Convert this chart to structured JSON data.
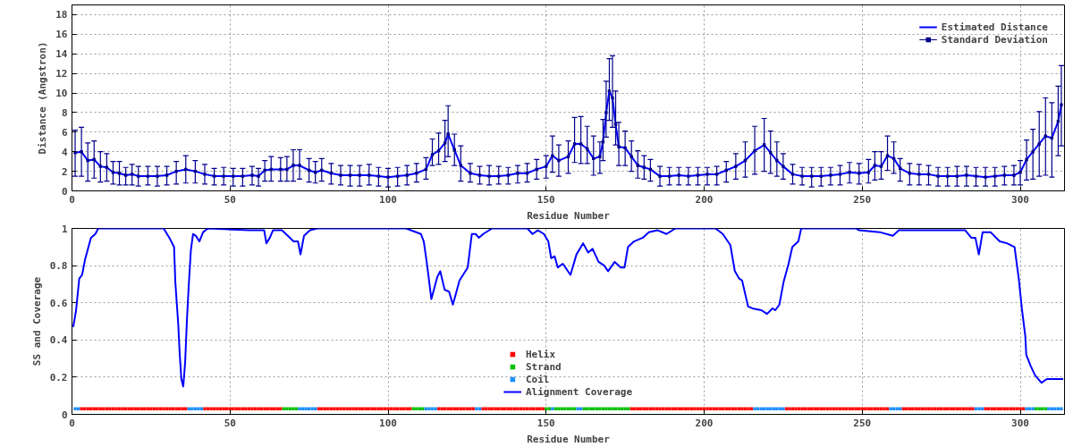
{
  "chart_data": [
    {
      "type": "line",
      "xlabel": "Residue Number",
      "ylabel": "Distance (Angstron)",
      "xlim": [
        0,
        314
      ],
      "ylim": [
        0,
        19
      ],
      "xticks": [
        0,
        50,
        100,
        150,
        200,
        250,
        300
      ],
      "yticks": [
        0,
        2,
        4,
        6,
        8,
        10,
        12,
        14,
        16,
        18
      ],
      "grid": true,
      "legend": "top right",
      "x": [
        1,
        3,
        5,
        7,
        9,
        11,
        13,
        15,
        17,
        19,
        21,
        24,
        27,
        30,
        33,
        36,
        39,
        42,
        45,
        48,
        51,
        54,
        57,
        59,
        61,
        63,
        66,
        68,
        70,
        72,
        75,
        77,
        79,
        82,
        85,
        88,
        91,
        94,
        97,
        100,
        103,
        106,
        109,
        112,
        114,
        116,
        118,
        119,
        121,
        123,
        126,
        129,
        132,
        135,
        138,
        141,
        144,
        147,
        150,
        152,
        154,
        157,
        159,
        161,
        163,
        165,
        167,
        168,
        169,
        170,
        171,
        172,
        173,
        175,
        177,
        179,
        181,
        183,
        186,
        189,
        192,
        195,
        198,
        201,
        204,
        207,
        210,
        213,
        216,
        219,
        221,
        223,
        225,
        228,
        231,
        234,
        237,
        240,
        243,
        246,
        249,
        252,
        254,
        256,
        258,
        260,
        262,
        265,
        268,
        271,
        274,
        277,
        280,
        283,
        286,
        289,
        292,
        295,
        298,
        300,
        302,
        304,
        306,
        308,
        310,
        312,
        313
      ],
      "series": [
        {
          "name": "Estimated Distance",
          "color": "#0000ff",
          "values": [
            3.9,
            4.0,
            3.1,
            3.2,
            2.5,
            2.4,
            1.9,
            1.8,
            1.6,
            1.7,
            1.5,
            1.5,
            1.5,
            1.6,
            2.0,
            2.2,
            2.0,
            1.7,
            1.5,
            1.5,
            1.5,
            1.5,
            1.6,
            1.5,
            2.1,
            2.2,
            2.2,
            2.2,
            2.6,
            2.6,
            2.1,
            1.9,
            2.1,
            1.8,
            1.6,
            1.6,
            1.6,
            1.6,
            1.5,
            1.4,
            1.5,
            1.6,
            1.8,
            2.2,
            3.7,
            4.1,
            4.9,
            5.8,
            4.2,
            2.6,
            1.8,
            1.6,
            1.5,
            1.5,
            1.6,
            1.8,
            1.8,
            2.2,
            2.5,
            3.6,
            3.1,
            3.5,
            4.8,
            4.8,
            4.3,
            3.3,
            3.5,
            5.0,
            8.0,
            10.2,
            9.5,
            6.8,
            4.5,
            4.4,
            3.5,
            2.6,
            2.4,
            2.2,
            1.5,
            1.5,
            1.6,
            1.5,
            1.6,
            1.7,
            1.7,
            2.1,
            2.5,
            3.1,
            4.1,
            4.7,
            3.9,
            3.1,
            2.5,
            1.7,
            1.5,
            1.5,
            1.5,
            1.6,
            1.7,
            1.9,
            1.8,
            1.9,
            2.6,
            2.5,
            3.6,
            3.3,
            2.3,
            1.8,
            1.7,
            1.7,
            1.5,
            1.5,
            1.5,
            1.6,
            1.5,
            1.4,
            1.5,
            1.6,
            1.6,
            1.9,
            3.2,
            4.0,
            4.8,
            5.6,
            5.4,
            7.1,
            8.8
          ]
        },
        {
          "name": "Standard Deviation",
          "type": "scatter",
          "marker": "square",
          "color": "#00008b",
          "values": [
            3.9,
            4.0,
            3.1,
            3.2,
            2.5,
            2.4,
            1.9,
            1.8,
            1.6,
            1.7,
            1.5,
            1.5,
            1.5,
            1.6,
            2.0,
            2.2,
            2.0,
            1.7,
            1.5,
            1.5,
            1.5,
            1.5,
            1.6,
            1.5,
            2.1,
            2.2,
            2.2,
            2.2,
            2.6,
            2.6,
            2.1,
            1.9,
            2.1,
            1.8,
            1.6,
            1.6,
            1.6,
            1.6,
            1.5,
            1.4,
            1.5,
            1.6,
            1.8,
            2.2,
            3.7,
            4.1,
            4.9,
            5.8,
            4.2,
            2.6,
            1.8,
            1.6,
            1.5,
            1.5,
            1.6,
            1.8,
            1.8,
            2.2,
            2.5,
            3.6,
            3.1,
            3.5,
            4.8,
            4.8,
            4.3,
            3.3,
            3.5,
            5.0,
            8.0,
            10.2,
            9.5,
            6.8,
            4.5,
            4.4,
            3.5,
            2.6,
            2.4,
            2.2,
            1.5,
            1.5,
            1.6,
            1.5,
            1.6,
            1.7,
            1.7,
            2.1,
            2.5,
            3.1,
            4.1,
            4.7,
            3.9,
            3.1,
            2.5,
            1.7,
            1.5,
            1.5,
            1.5,
            1.6,
            1.7,
            1.9,
            1.8,
            1.9,
            2.6,
            2.5,
            3.6,
            3.3,
            2.3,
            1.8,
            1.7,
            1.7,
            1.5,
            1.5,
            1.5,
            1.6,
            1.5,
            1.4,
            1.5,
            1.6,
            1.6,
            1.9,
            3.2,
            4.0,
            4.8,
            5.6,
            5.4,
            7.1,
            8.8
          ],
          "errors": [
            [
              1.5,
              6.2
            ],
            [
              1.5,
              6.5
            ],
            [
              1.0,
              4.9
            ],
            [
              1.3,
              5.1
            ],
            [
              0.9,
              4.0
            ],
            [
              1.0,
              3.8
            ],
            [
              0.7,
              3.0
            ],
            [
              0.6,
              3.0
            ],
            [
              0.6,
              2.4
            ],
            [
              0.6,
              2.7
            ],
            [
              0.5,
              2.5
            ],
            [
              0.6,
              2.5
            ],
            [
              0.5,
              2.5
            ],
            [
              0.6,
              2.5
            ],
            [
              0.7,
              3.0
            ],
            [
              0.8,
              3.6
            ],
            [
              0.8,
              3.1
            ],
            [
              0.7,
              2.7
            ],
            [
              0.6,
              2.3
            ],
            [
              0.6,
              2.4
            ],
            [
              0.5,
              2.3
            ],
            [
              0.5,
              2.3
            ],
            [
              0.6,
              2.5
            ],
            [
              0.5,
              2.3
            ],
            [
              1.0,
              3.1
            ],
            [
              1.0,
              3.5
            ],
            [
              1.0,
              3.4
            ],
            [
              1.0,
              3.5
            ],
            [
              1.0,
              4.2
            ],
            [
              1.2,
              4.2
            ],
            [
              0.9,
              3.3
            ],
            [
              0.8,
              3.0
            ],
            [
              1.0,
              3.3
            ],
            [
              0.7,
              2.8
            ],
            [
              0.6,
              2.6
            ],
            [
              0.5,
              2.6
            ],
            [
              0.5,
              2.6
            ],
            [
              0.6,
              2.7
            ],
            [
              0.5,
              2.4
            ],
            [
              0.4,
              2.3
            ],
            [
              0.5,
              2.4
            ],
            [
              0.6,
              2.6
            ],
            [
              0.9,
              2.8
            ],
            [
              1.2,
              3.4
            ],
            [
              2.6,
              5.3
            ],
            [
              2.7,
              5.9
            ],
            [
              3.0,
              7.2
            ],
            [
              3.5,
              8.7
            ],
            [
              2.6,
              5.8
            ],
            [
              1.0,
              4.6
            ],
            [
              0.9,
              2.8
            ],
            [
              0.7,
              2.5
            ],
            [
              0.6,
              2.6
            ],
            [
              0.7,
              2.5
            ],
            [
              0.7,
              2.4
            ],
            [
              0.8,
              2.6
            ],
            [
              0.9,
              2.8
            ],
            [
              1.2,
              3.2
            ],
            [
              1.3,
              3.6
            ],
            [
              1.9,
              5.6
            ],
            [
              1.5,
              4.7
            ],
            [
              1.8,
              5.1
            ],
            [
              2.9,
              7.5
            ],
            [
              2.8,
              7.6
            ],
            [
              2.8,
              6.6
            ],
            [
              1.6,
              5.6
            ],
            [
              1.8,
              5.0
            ],
            [
              3.1,
              7.3
            ],
            [
              5.5,
              11.2
            ],
            [
              7.2,
              13.5
            ],
            [
              6.5,
              13.8
            ],
            [
              4.7,
              10.2
            ],
            [
              2.6,
              7.0
            ],
            [
              2.6,
              6.1
            ],
            [
              2.0,
              5.1
            ],
            [
              1.3,
              4.1
            ],
            [
              1.2,
              3.6
            ],
            [
              1.0,
              3.2
            ],
            [
              0.5,
              2.5
            ],
            [
              0.6,
              2.4
            ],
            [
              0.6,
              2.4
            ],
            [
              0.6,
              2.4
            ],
            [
              0.6,
              2.4
            ],
            [
              0.6,
              2.4
            ],
            [
              0.6,
              2.5
            ],
            [
              0.9,
              3.0
            ],
            [
              1.2,
              3.8
            ],
            [
              1.4,
              5.0
            ],
            [
              1.7,
              6.6
            ],
            [
              2.0,
              7.4
            ],
            [
              1.8,
              6.1
            ],
            [
              1.5,
              5.0
            ],
            [
              1.2,
              3.8
            ],
            [
              0.7,
              2.7
            ],
            [
              0.6,
              2.4
            ],
            [
              0.4,
              2.4
            ],
            [
              0.5,
              2.4
            ],
            [
              0.6,
              2.4
            ],
            [
              0.6,
              2.6
            ],
            [
              0.8,
              2.9
            ],
            [
              0.7,
              2.8
            ],
            [
              0.8,
              3.2
            ],
            [
              1.1,
              4.0
            ],
            [
              1.2,
              4.0
            ],
            [
              2.1,
              5.6
            ],
            [
              1.8,
              5.0
            ],
            [
              1.0,
              3.3
            ],
            [
              0.6,
              2.8
            ],
            [
              0.6,
              2.7
            ],
            [
              0.6,
              2.6
            ],
            [
              0.5,
              2.4
            ],
            [
              0.5,
              2.4
            ],
            [
              0.5,
              2.5
            ],
            [
              0.5,
              2.5
            ],
            [
              0.5,
              2.4
            ],
            [
              0.5,
              2.4
            ],
            [
              0.5,
              2.4
            ],
            [
              0.6,
              2.5
            ],
            [
              0.6,
              2.6
            ],
            [
              0.6,
              3.1
            ],
            [
              1.1,
              5.2
            ],
            [
              1.2,
              6.3
            ],
            [
              1.5,
              8.1
            ],
            [
              1.6,
              9.5
            ],
            [
              1.4,
              9.0
            ],
            [
              3.6,
              10.7
            ],
            [
              4.6,
              12.8
            ]
          ]
        }
      ]
    },
    {
      "type": "line",
      "xlabel": "Residue Number",
      "ylabel": "SS and Coverage",
      "xlim": [
        0,
        314
      ],
      "ylim": [
        0,
        1
      ],
      "xticks": [
        0,
        50,
        100,
        150,
        200,
        250,
        300
      ],
      "yticks": [
        0,
        0.2,
        0.4,
        0.6,
        0.8,
        1
      ],
      "grid": true,
      "legend": "bottom",
      "series": [
        {
          "name": "Helix",
          "type": "scatter",
          "marker": "square",
          "color": "#ff0000",
          "x": [
            3,
            4,
            5,
            6,
            7,
            8,
            9,
            10,
            11,
            12,
            13,
            14,
            15,
            16,
            17,
            18,
            19,
            20,
            21,
            22,
            23,
            24,
            25,
            26,
            27,
            28,
            29,
            30,
            31,
            32,
            33,
            34,
            35,
            36,
            42,
            43,
            44,
            45,
            46,
            47,
            48,
            49,
            50,
            51,
            52,
            53,
            54,
            55,
            56,
            57,
            58,
            59,
            60,
            61,
            62,
            63,
            64,
            65,
            66,
            78,
            79,
            80,
            81,
            82,
            83,
            84,
            85,
            86,
            87,
            88,
            89,
            90,
            91,
            92,
            93,
            94,
            95,
            96,
            97,
            98,
            99,
            100,
            101,
            102,
            103,
            104,
            105,
            106,
            107,
            116,
            117,
            118,
            119,
            120,
            121,
            122,
            123,
            124,
            125,
            126,
            127,
            130,
            131,
            132,
            133,
            134,
            135,
            136,
            137,
            138,
            139,
            140,
            141,
            142,
            143,
            144,
            145,
            146,
            147,
            148,
            149,
            177,
            178,
            179,
            180,
            181,
            182,
            183,
            184,
            185,
            186,
            187,
            188,
            189,
            190,
            191,
            192,
            193,
            194,
            195,
            196,
            197,
            198,
            199,
            200,
            201,
            202,
            203,
            204,
            205,
            206,
            207,
            208,
            209,
            210,
            211,
            212,
            213,
            214,
            215,
            226,
            227,
            228,
            229,
            230,
            231,
            232,
            233,
            234,
            235,
            236,
            237,
            238,
            239,
            240,
            241,
            242,
            243,
            244,
            245,
            246,
            247,
            248,
            249,
            250,
            251,
            252,
            253,
            254,
            255,
            256,
            257,
            258,
            263,
            264,
            265,
            266,
            267,
            268,
            269,
            270,
            271,
            272,
            273,
            274,
            275,
            276,
            277,
            278,
            279,
            280,
            281,
            282,
            283,
            284,
            285,
            289,
            290,
            291,
            292,
            293,
            294,
            295,
            296,
            297,
            298,
            299,
            300,
            301
          ],
          "values": [
            0.03,
            0.03,
            0.03,
            0.03,
            0.03,
            0.03,
            0.03,
            0.03,
            0.03,
            0.03,
            0.03,
            0.03,
            0.03,
            0.03,
            0.03,
            0.03,
            0.03,
            0.03,
            0.03,
            0.03,
            0.03,
            0.03,
            0.03,
            0.03,
            0.03,
            0.03,
            0.03,
            0.03,
            0.03,
            0.03,
            0.03,
            0.03,
            0.03,
            0.03,
            0.03,
            0.03,
            0.03,
            0.03,
            0.03,
            0.03,
            0.03,
            0.03,
            0.03,
            0.03,
            0.03,
            0.03,
            0.03,
            0.03,
            0.03,
            0.03,
            0.03,
            0.03,
            0.03,
            0.03,
            0.03,
            0.03,
            0.03,
            0.03,
            0.03,
            0.03,
            0.03,
            0.03,
            0.03,
            0.03,
            0.03,
            0.03,
            0.03,
            0.03,
            0.03,
            0.03,
            0.03,
            0.03,
            0.03,
            0.03,
            0.03,
            0.03,
            0.03,
            0.03,
            0.03,
            0.03,
            0.03,
            0.03,
            0.03,
            0.03,
            0.03,
            0.03,
            0.03,
            0.03,
            0.03,
            0.03,
            0.03,
            0.03,
            0.03,
            0.03,
            0.03,
            0.03,
            0.03,
            0.03,
            0.03,
            0.03,
            0.03,
            0.03,
            0.03,
            0.03,
            0.03,
            0.03,
            0.03,
            0.03,
            0.03,
            0.03,
            0.03,
            0.03,
            0.03,
            0.03,
            0.03,
            0.03,
            0.03,
            0.03,
            0.03,
            0.03,
            0.03,
            0.03,
            0.03,
            0.03,
            0.03,
            0.03,
            0.03,
            0.03,
            0.03,
            0.03,
            0.03,
            0.03,
            0.03,
            0.03,
            0.03,
            0.03,
            0.03,
            0.03,
            0.03,
            0.03,
            0.03,
            0.03,
            0.03,
            0.03,
            0.03,
            0.03,
            0.03,
            0.03,
            0.03,
            0.03,
            0.03,
            0.03,
            0.03,
            0.03,
            0.03,
            0.03,
            0.03,
            0.03,
            0.03,
            0.03,
            0.03,
            0.03,
            0.03,
            0.03,
            0.03,
            0.03,
            0.03,
            0.03,
            0.03,
            0.03,
            0.03,
            0.03,
            0.03,
            0.03,
            0.03,
            0.03,
            0.03,
            0.03,
            0.03,
            0.03,
            0.03,
            0.03,
            0.03,
            0.03,
            0.03,
            0.03,
            0.03,
            0.03,
            0.03,
            0.03,
            0.03,
            0.03,
            0.03,
            0.03,
            0.03,
            0.03,
            0.03,
            0.03,
            0.03,
            0.03,
            0.03,
            0.03,
            0.03,
            0.03,
            0.03,
            0.03,
            0.03,
            0.03,
            0.03,
            0.03,
            0.03,
            0.03,
            0.03,
            0.03,
            0.03,
            0.03,
            0.03,
            0.03,
            0.03,
            0.03,
            0.03,
            0.03,
            0.03,
            0.03,
            0.03,
            0.03,
            0.03,
            0.03,
            0.03
          ]
        },
        {
          "name": "Strand",
          "type": "scatter",
          "marker": "square",
          "color": "#00c000",
          "x": [
            67,
            68,
            69,
            70,
            71,
            108,
            109,
            110,
            111,
            150,
            151,
            153,
            154,
            155,
            156,
            157,
            158,
            159,
            162,
            163,
            164,
            165,
            166,
            167,
            168,
            169,
            170,
            171,
            172,
            173,
            174,
            175,
            176,
            305,
            306,
            307,
            308
          ],
          "values": [
            0.03,
            0.03,
            0.03,
            0.03,
            0.03,
            0.03,
            0.03,
            0.03,
            0.03,
            0.03,
            0.03,
            0.03,
            0.03,
            0.03,
            0.03,
            0.03,
            0.03,
            0.03,
            0.03,
            0.03,
            0.03,
            0.03,
            0.03,
            0.03,
            0.03,
            0.03,
            0.03,
            0.03,
            0.03,
            0.03,
            0.03,
            0.03,
            0.03,
            0.03,
            0.03,
            0.03,
            0.03
          ]
        },
        {
          "name": "Coil",
          "type": "scatter",
          "marker": "square",
          "color": "#1e90ff",
          "x": [
            1,
            2,
            37,
            38,
            39,
            40,
            41,
            72,
            73,
            74,
            75,
            76,
            77,
            112,
            113,
            114,
            115,
            128,
            129,
            152,
            160,
            161,
            216,
            217,
            218,
            219,
            220,
            221,
            222,
            223,
            224,
            225,
            259,
            260,
            261,
            262,
            286,
            287,
            288,
            302,
            303,
            304,
            309,
            310,
            311,
            312,
            313
          ],
          "values": [
            0.03,
            0.03,
            0.03,
            0.03,
            0.03,
            0.03,
            0.03,
            0.03,
            0.03,
            0.03,
            0.03,
            0.03,
            0.03,
            0.03,
            0.03,
            0.03,
            0.03,
            0.03,
            0.03,
            0.03,
            0.03,
            0.03,
            0.03,
            0.03,
            0.03,
            0.03,
            0.03,
            0.03,
            0.03,
            0.03,
            0.03,
            0.03,
            0.03,
            0.03,
            0.03,
            0.03,
            0.03,
            0.03,
            0.03,
            0.03,
            0.03,
            0.03,
            0.03,
            0.03,
            0.03,
            0.03,
            0.03
          ]
        },
        {
          "name": "Alignment Coverage",
          "color": "#0000ff",
          "x": [
            0.4,
            1.3,
            2.3,
            3.2,
            4.1,
            6.0,
            7.4,
            8.3,
            29,
            30.8,
            32.3,
            32.7,
            33.6,
            34.1,
            34.6,
            35.2,
            35.8,
            36.4,
            36.9,
            37.6,
            38.3,
            39.2,
            40.3,
            41.5,
            43,
            56,
            60.8,
            61.5,
            62.6,
            63.6,
            66.4,
            68.3,
            70.1,
            71.5,
            72.3,
            73.4,
            75.3,
            77.6,
            105.7,
            110.4,
            111.3,
            112.3,
            113.7,
            115.6,
            116.5,
            117.9,
            119.3,
            120.5,
            122.6,
            125.2,
            126.5,
            127.7,
            128.7,
            130.1,
            132.9,
            144.1,
            145.7,
            147.4,
            149.3,
            150.7,
            151.6,
            152.7,
            153.7,
            155.3,
            157.7,
            159.6,
            161.7,
            163.3,
            164.7,
            166.6,
            168.4,
            169.6,
            171.7,
            173.6,
            174.8,
            175.9,
            177.8,
            180.6,
            182.5,
            185.3,
            188.1,
            190.9,
            203.6,
            205.9,
            208.3,
            209.7,
            211.1,
            212,
            213.9,
            215.3,
            218.1,
            219.9,
            221.6,
            222.5,
            223.8,
            225.1,
            226.7,
            227.9,
            229.8,
            230.7,
            248,
            249,
            255.5,
            259.7,
            261.6,
            282.6,
            284.5,
            285.8,
            286.9,
            288.1,
            290.6,
            293.5,
            295.8,
            298.2,
            299.6,
            300.5,
            301.6,
            301.9,
            303.3,
            304.7,
            306.7,
            308.4,
            313.6
          ],
          "values": [
            0.47,
            0.56,
            0.73,
            0.75,
            0.83,
            0.95,
            0.97,
            1.0,
            1.0,
            0.95,
            0.9,
            0.71,
            0.49,
            0.32,
            0.19,
            0.15,
            0.28,
            0.52,
            0.68,
            0.88,
            0.97,
            0.96,
            0.93,
            0.98,
            1.0,
            0.99,
            0.99,
            0.92,
            0.95,
            0.99,
            0.99,
            0.96,
            0.93,
            0.93,
            0.86,
            0.96,
            0.99,
            1.0,
            1.0,
            0.97,
            0.93,
            0.81,
            0.62,
            0.74,
            0.77,
            0.67,
            0.66,
            0.59,
            0.72,
            0.79,
            0.97,
            0.97,
            0.95,
            0.97,
            1.0,
            1.0,
            0.97,
            0.99,
            0.97,
            0.93,
            0.84,
            0.85,
            0.79,
            0.81,
            0.75,
            0.86,
            0.92,
            0.87,
            0.89,
            0.82,
            0.8,
            0.77,
            0.82,
            0.79,
            0.79,
            0.9,
            0.93,
            0.95,
            0.98,
            0.99,
            0.97,
            1.0,
            1.0,
            0.97,
            0.91,
            0.77,
            0.73,
            0.72,
            0.58,
            0.57,
            0.56,
            0.54,
            0.57,
            0.56,
            0.59,
            0.71,
            0.81,
            0.9,
            0.93,
            1.0,
            1.0,
            0.99,
            0.98,
            0.96,
            0.99,
            0.99,
            0.95,
            0.95,
            0.86,
            0.98,
            0.98,
            0.93,
            0.92,
            0.9,
            0.72,
            0.57,
            0.42,
            0.32,
            0.26,
            0.21,
            0.17,
            0.19,
            0.19
          ]
        }
      ]
    }
  ]
}
